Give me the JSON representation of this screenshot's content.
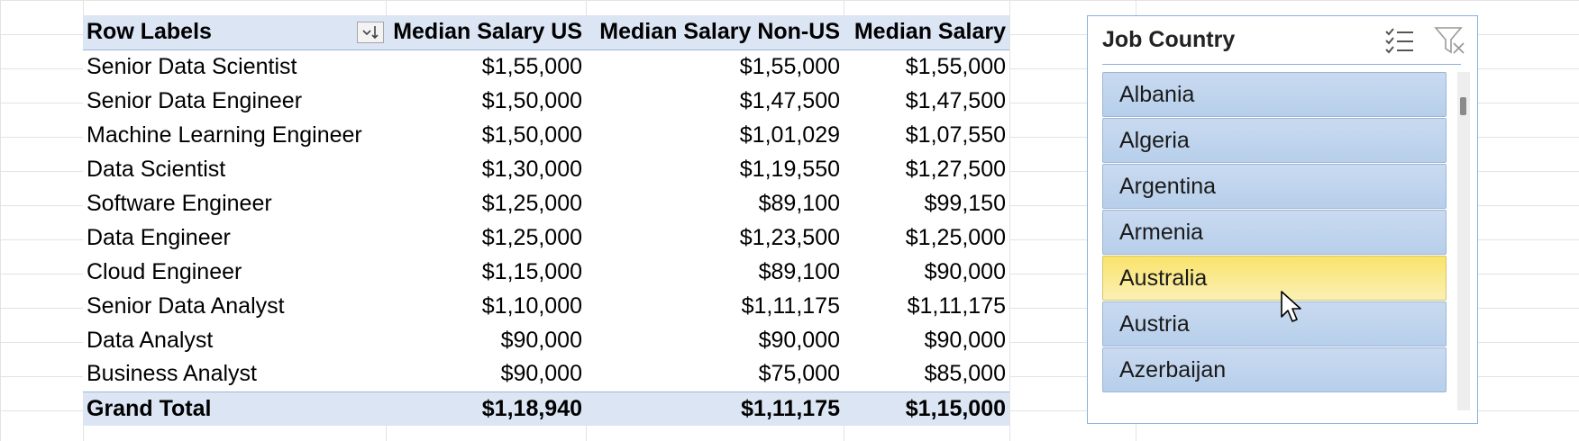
{
  "pivot": {
    "headers": {
      "row_labels": "Row Labels",
      "us": "Median Salary US",
      "non_us": "Median Salary Non-US",
      "all": "Median Salary"
    },
    "sort_icon": "sort-descending-icon",
    "rows": [
      {
        "label": "Senior Data Scientist",
        "us": "$1,55,000",
        "non_us": "$1,55,000",
        "all": "$1,55,000"
      },
      {
        "label": "Senior Data Engineer",
        "us": "$1,50,000",
        "non_us": "$1,47,500",
        "all": "$1,47,500"
      },
      {
        "label": "Machine Learning Engineer",
        "us": "$1,50,000",
        "non_us": "$1,01,029",
        "all": "$1,07,550"
      },
      {
        "label": "Data Scientist",
        "us": "$1,30,000",
        "non_us": "$1,19,550",
        "all": "$1,27,500"
      },
      {
        "label": "Software Engineer",
        "us": "$1,25,000",
        "non_us": "$89,100",
        "all": "$99,150"
      },
      {
        "label": "Data Engineer",
        "us": "$1,25,000",
        "non_us": "$1,23,500",
        "all": "$1,25,000"
      },
      {
        "label": "Cloud Engineer",
        "us": "$1,15,000",
        "non_us": "$89,100",
        "all": "$90,000"
      },
      {
        "label": "Senior Data Analyst",
        "us": "$1,10,000",
        "non_us": "$1,11,175",
        "all": "$1,11,175"
      },
      {
        "label": "Data Analyst",
        "us": "$90,000",
        "non_us": "$90,000",
        "all": "$90,000"
      },
      {
        "label": "Business Analyst",
        "us": "$90,000",
        "non_us": "$75,000",
        "all": "$85,000"
      }
    ],
    "total": {
      "label": "Grand Total",
      "us": "$1,18,940",
      "non_us": "$1,11,175",
      "all": "$1,15,000"
    }
  },
  "slicer": {
    "title": "Job Country",
    "multi_select_icon": "multi-select-icon",
    "clear_filter_icon": "clear-filter-icon",
    "items": [
      "Albania",
      "Algeria",
      "Argentina",
      "Armenia",
      "Australia",
      "Austria",
      "Azerbaijan"
    ],
    "hovered_item": "Australia"
  },
  "colors": {
    "header_fill": "#dbe5f3",
    "slicer_item": "#b7cfeb",
    "slicer_hover": "#f9e36a",
    "slicer_border": "#8ab0df"
  }
}
